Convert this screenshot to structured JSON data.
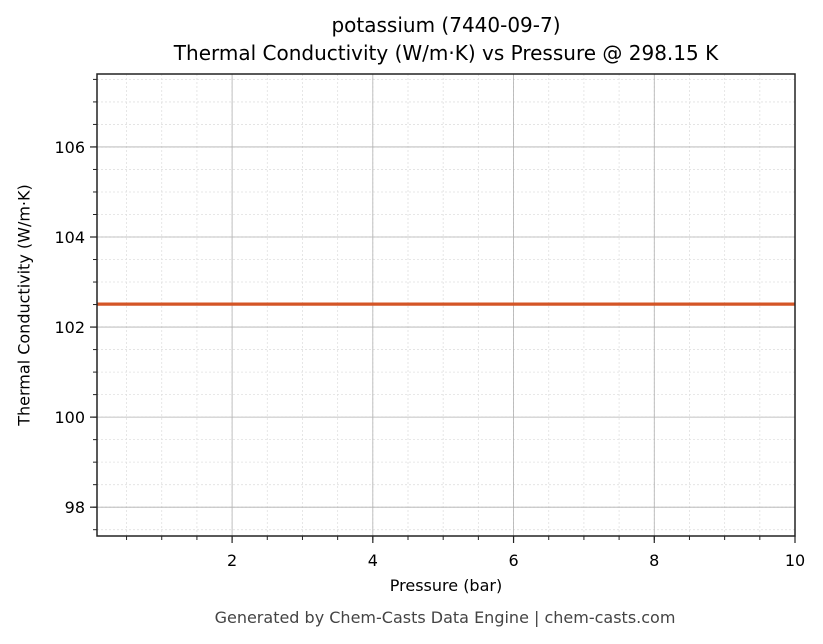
{
  "title_line1": "potassium (7440-09-7)",
  "title_line2": "Thermal Conductivity (W/m·K) vs Pressure @ 298.15 K",
  "footer": "Generated by Chem-Casts Data Engine | chem-casts.com",
  "colors": {
    "line": "#d45526",
    "grid_major": "#b0b0b0",
    "grid_minor": "#e0e0e0",
    "axis": "#222222"
  },
  "chart_data": {
    "type": "line",
    "title": "potassium (7440-09-7)\nThermal Conductivity (W/m·K) vs Pressure @ 298.15 K",
    "xlabel": "Pressure (bar)",
    "ylabel": "Thermal Conductivity (W/m·K)",
    "xlim": [
      0.08,
      10
    ],
    "ylim": [
      97.36,
      107.62
    ],
    "xticks": [
      2,
      4,
      6,
      8,
      10
    ],
    "yticks": [
      98,
      100,
      102,
      104,
      106
    ],
    "grid": true,
    "minor_grid": true,
    "legend": null,
    "series": [
      {
        "name": "Thermal Conductivity",
        "color": "#d45526",
        "x": [
          0.08,
          1,
          2,
          3,
          4,
          5,
          6,
          7,
          8,
          9,
          10
        ],
        "y": [
          102.51,
          102.51,
          102.51,
          102.51,
          102.51,
          102.51,
          102.51,
          102.51,
          102.51,
          102.51,
          102.51
        ]
      }
    ]
  }
}
